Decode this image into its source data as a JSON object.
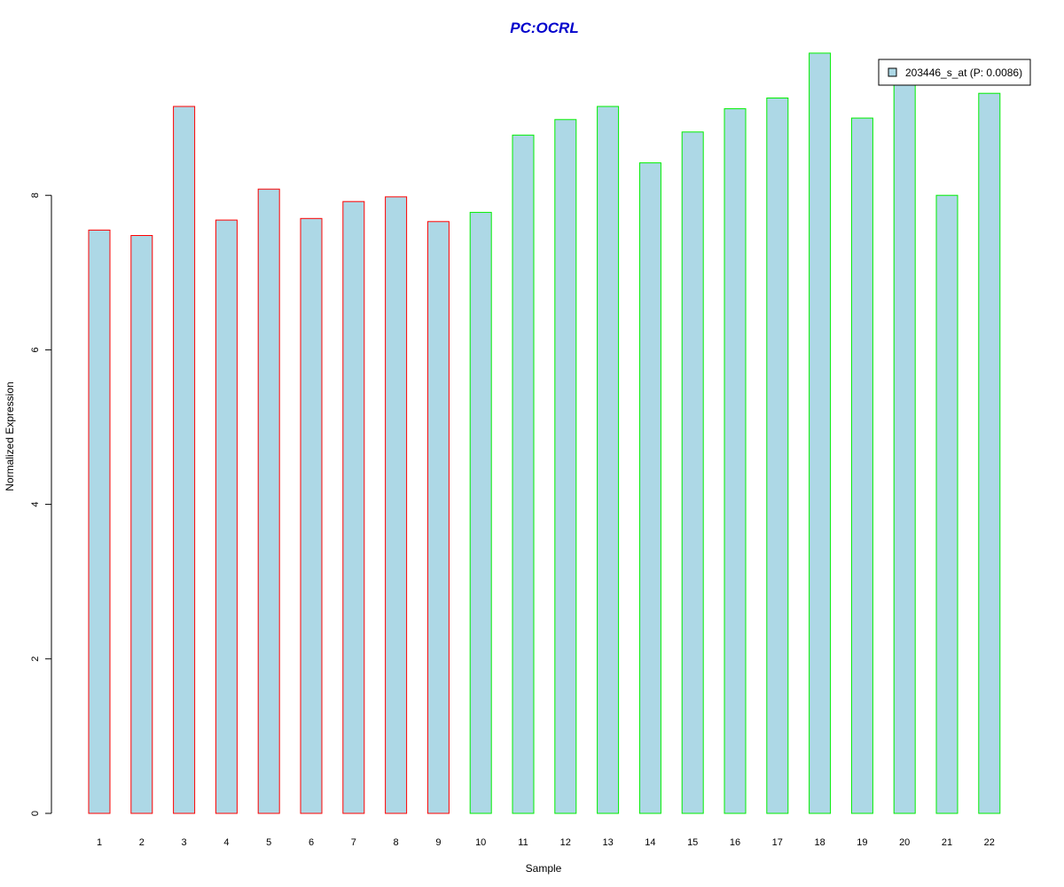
{
  "chart_data": {
    "type": "bar",
    "title": "PC:OCRL",
    "title_color": "#0000cc",
    "xlabel": "Sample",
    "ylabel": "Normalized Expression",
    "categories": [
      "1",
      "2",
      "3",
      "4",
      "5",
      "6",
      "7",
      "8",
      "9",
      "10",
      "11",
      "12",
      "13",
      "14",
      "15",
      "16",
      "17",
      "18",
      "19",
      "20",
      "21",
      "22"
    ],
    "values": [
      7.55,
      7.48,
      9.15,
      7.68,
      8.08,
      7.7,
      7.92,
      7.98,
      7.66,
      7.78,
      8.78,
      8.98,
      9.15,
      8.42,
      8.82,
      9.12,
      9.26,
      9.84,
      9.0,
      9.48,
      8.0,
      9.32
    ],
    "bar_fill": "#add8e6",
    "group_border_colors": [
      "#ff0000",
      "#ff0000",
      "#ff0000",
      "#ff0000",
      "#ff0000",
      "#ff0000",
      "#ff0000",
      "#ff0000",
      "#ff0000",
      "#00ee00",
      "#00ee00",
      "#00ee00",
      "#00ee00",
      "#00ee00",
      "#00ee00",
      "#00ee00",
      "#00ee00",
      "#00ee00",
      "#00ee00",
      "#00ee00",
      "#00ee00",
      "#00ee00"
    ],
    "yticks": [
      0,
      2,
      4,
      6,
      8
    ],
    "ylim": [
      0,
      9.84
    ],
    "grid": false,
    "legend": {
      "position": "top-right",
      "entries": [
        {
          "label": "203446_s_at (P: 0.0086)",
          "fill": "#add8e6"
        }
      ]
    }
  }
}
